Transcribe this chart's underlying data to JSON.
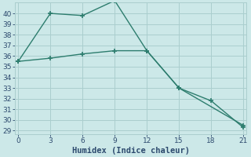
{
  "line1_x": [
    0,
    3,
    6,
    9,
    12,
    15,
    21
  ],
  "line1_y": [
    35.5,
    40.0,
    39.8,
    41.2,
    36.5,
    33.0,
    29.5
  ],
  "line2_x": [
    0,
    3,
    6,
    9,
    12,
    15,
    18,
    21
  ],
  "line2_y": [
    35.5,
    35.8,
    36.2,
    36.5,
    36.5,
    33.0,
    31.8,
    29.3
  ],
  "line_color": "#2d7d6e",
  "bg_color": "#cce8e8",
  "grid_color": "#aacece",
  "xlabel": "Humidex (Indice chaleur)",
  "xlim": [
    -0.3,
    21.3
  ],
  "ylim": [
    28.7,
    41.0
  ],
  "yticks": [
    29,
    30,
    31,
    32,
    33,
    34,
    35,
    36,
    37,
    38,
    39,
    40
  ],
  "xticks": [
    0,
    3,
    6,
    9,
    12,
    15,
    18,
    21
  ],
  "font_color": "#2d4a6e",
  "xlabel_fontsize": 7.5,
  "tick_fontsize": 6.5
}
